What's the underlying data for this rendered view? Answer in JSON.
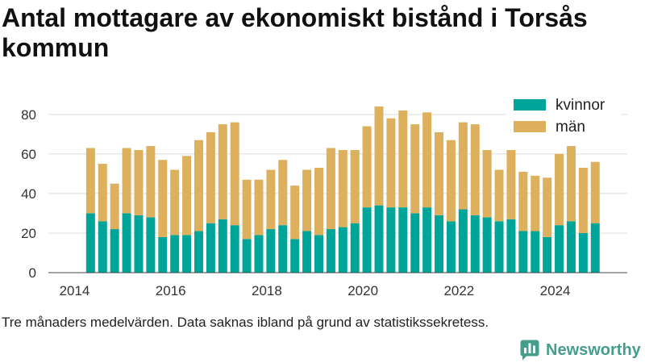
{
  "footnote": "Tre månaders medelvärden. Data saknas ibland på grund av statistikssekretess.",
  "brand": {
    "name": "Newsworthy",
    "icon": "newsworthy-logo-icon",
    "color": "#459e8c"
  },
  "chart_data": {
    "type": "bar",
    "stacked": true,
    "title": "Antal mottagare av ekonomiskt bistånd i Torsås kommun",
    "x": [
      "2014-05",
      "2014-08",
      "2014-11",
      "2015-02",
      "2015-05",
      "2015-08",
      "2015-11",
      "2016-02",
      "2016-05",
      "2016-08",
      "2016-11",
      "2017-02",
      "2017-05",
      "2017-08",
      "2017-11",
      "2018-02",
      "2018-05",
      "2018-08",
      "2018-11",
      "2019-02",
      "2019-05",
      "2019-08",
      "2019-11",
      "2020-02",
      "2020-05",
      "2020-08",
      "2020-11",
      "2021-02",
      "2021-05",
      "2021-08",
      "2021-11",
      "2022-02",
      "2022-05",
      "2022-08",
      "2022-11",
      "2023-02",
      "2023-05",
      "2023-08",
      "2023-11",
      "2024-02",
      "2024-05",
      "2024-08",
      "2024-11"
    ],
    "x_ticks": [
      "2014",
      "2016",
      "2018",
      "2020",
      "2022",
      "2024"
    ],
    "y_ticks": [
      0,
      20,
      40,
      60,
      80
    ],
    "xlim": [
      "2013-06-15",
      "2025-07-01"
    ],
    "ylim": [
      0,
      90
    ],
    "grid": true,
    "legend": "top-right",
    "series": [
      {
        "name": "kvinnor",
        "color": "#00a59a",
        "values": [
          30,
          26,
          22,
          30,
          29,
          28,
          18,
          19,
          19,
          21,
          25,
          27,
          24,
          17,
          19,
          22,
          24,
          17,
          21,
          19,
          22,
          23,
          25,
          33,
          34,
          33,
          33,
          30,
          33,
          29,
          26,
          32,
          29,
          28,
          26,
          27,
          21,
          21,
          18,
          24,
          26,
          20,
          25
        ]
      },
      {
        "name": "män",
        "color": "#dcb05c",
        "values": [
          33,
          29,
          23,
          33,
          33,
          36,
          39,
          33,
          40,
          46,
          46,
          48,
          52,
          30,
          28,
          30,
          33,
          27,
          31,
          34,
          41,
          39,
          37,
          41,
          50,
          45,
          49,
          45,
          48,
          42,
          41,
          44,
          46,
          34,
          26,
          35,
          30,
          28,
          30,
          36,
          38,
          33,
          31
        ]
      }
    ]
  }
}
